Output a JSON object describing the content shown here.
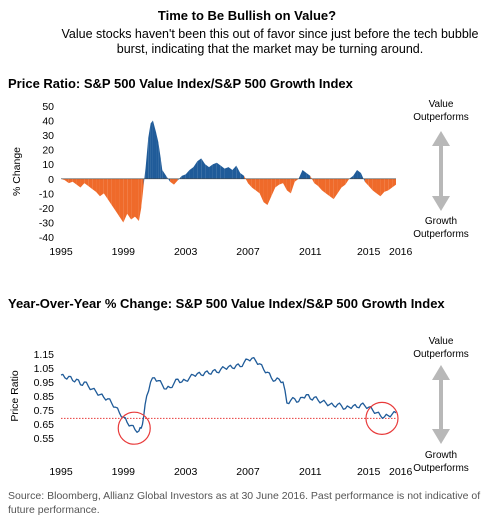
{
  "title": "Time to Be Bullish on Value?",
  "subtitle": "Value stocks haven't been this out of favor since just before the tech bubble burst, indicating that the market may be turning around.",
  "source": "Source: Bloomberg, Allianz Global Investors as at 30 June 2016. Past performance is not indicative of future performance.",
  "colors": {
    "positive": "#1f5b99",
    "negative": "#ef6a2a",
    "line": "#1f5b99",
    "reference": "#e83a3a",
    "arrow": "#b8b8b8"
  },
  "chart_data": [
    {
      "type": "area",
      "title": "Price Ratio: S&P 500 Value Index/S&P 500 Growth Index",
      "ylabel": "% Change",
      "ylim": [
        -40,
        50
      ],
      "yticks": [
        "50",
        "40",
        "30",
        "20",
        "10",
        "0",
        "-10",
        "-20",
        "-30",
        "-40"
      ],
      "xlim": [
        1995,
        2016.5
      ],
      "xticks": [
        "1995",
        "1999",
        "2003",
        "2007",
        "2011",
        "2015",
        "2016"
      ],
      "annotations": [
        "Value",
        "Outperforms",
        "Growth",
        "Outperforms"
      ],
      "series": [
        {
          "x": [
            1995.0,
            1995.25,
            1995.5,
            1995.75,
            1996.0,
            1996.25,
            1996.5,
            1996.75,
            1997.0,
            1997.25,
            1997.5,
            1997.75,
            1998.0,
            1998.25,
            1998.5,
            1998.75,
            1999.0,
            1999.25,
            1999.5,
            1999.75,
            2000.0,
            2000.15,
            2000.3,
            2000.45,
            2000.6,
            2000.75,
            2000.9,
            2001.0,
            2001.1,
            2001.25,
            2001.4,
            2001.5,
            2001.75,
            2002.0,
            2002.25,
            2002.5,
            2002.75,
            2003.0,
            2003.25,
            2003.5,
            2003.75,
            2004.0,
            2004.25,
            2004.5,
            2004.75,
            2005.0,
            2005.25,
            2005.5,
            2005.75,
            2006.0,
            2006.25,
            2006.5,
            2006.75,
            2007.0,
            2007.25,
            2007.5,
            2007.75,
            2008.0,
            2008.25,
            2008.5,
            2008.75,
            2009.0,
            2009.25,
            2009.5,
            2009.75,
            2010.0,
            2010.25,
            2010.5,
            2010.75,
            2011.0,
            2011.25,
            2011.5,
            2011.75,
            2012.0,
            2012.25,
            2012.5,
            2012.75,
            2013.0,
            2013.25,
            2013.5,
            2013.75,
            2014.0,
            2014.25,
            2014.5,
            2014.75,
            2015.0,
            2015.25,
            2015.5,
            2015.75,
            2016.0,
            2016.25,
            2016.5
          ],
          "y": [
            0,
            -1,
            -3,
            -2,
            -4,
            -6,
            -3,
            -5,
            -7,
            -9,
            -12,
            -10,
            -14,
            -18,
            -22,
            -26,
            -30,
            -24,
            -28,
            -26,
            -29,
            -20,
            -5,
            10,
            28,
            38,
            40,
            36,
            32,
            25,
            14,
            6,
            2,
            -2,
            -4,
            -1,
            2,
            3,
            6,
            8,
            12,
            14,
            10,
            8,
            10,
            11,
            9,
            7,
            8,
            6,
            9,
            4,
            2,
            -3,
            -6,
            -8,
            -10,
            -16,
            -18,
            -12,
            -6,
            -4,
            -3,
            -8,
            -10,
            -2,
            0,
            6,
            4,
            2,
            -3,
            -5,
            -8,
            -10,
            -12,
            -14,
            -10,
            -6,
            -4,
            0,
            2,
            6,
            4,
            -2,
            -5,
            -8,
            -10,
            -12,
            -9,
            -8,
            -6,
            -4
          ]
        }
      ]
    },
    {
      "type": "line",
      "title": "Year-Over-Year % Change: S&P 500 Value Index/S&P 500 Growth Index",
      "ylabel": "Price Ratio",
      "ylim": [
        0.55,
        1.15
      ],
      "yticks": [
        "1.15",
        "1.05",
        "0.95",
        "0.85",
        "0.75",
        "0.65",
        "0.55"
      ],
      "xlim": [
        1995,
        2016.5
      ],
      "xticks": [
        "1995",
        "1999",
        "2003",
        "2007",
        "2011",
        "2015",
        "2016"
      ],
      "reference_line": 0.69,
      "circles_at": [
        [
          1999.7,
          0.62
        ],
        [
          2015.6,
          0.69
        ]
      ],
      "annotations": [
        "Value",
        "Outperforms",
        "Growth",
        "Outperforms"
      ],
      "series": [
        {
          "x": [
            1995.0,
            1995.25,
            1995.5,
            1995.75,
            1996.0,
            1996.25,
            1996.5,
            1996.75,
            1997.0,
            1997.25,
            1997.5,
            1997.75,
            1998.0,
            1998.25,
            1998.5,
            1998.75,
            1999.0,
            1999.25,
            1999.5,
            1999.75,
            2000.0,
            2000.15,
            2000.3,
            2000.5,
            2000.75,
            2001.0,
            2001.25,
            2001.5,
            2001.75,
            2002.0,
            2002.25,
            2002.5,
            2002.75,
            2003.0,
            2003.25,
            2003.5,
            2003.75,
            2004.0,
            2004.25,
            2004.5,
            2004.75,
            2005.0,
            2005.25,
            2005.5,
            2005.75,
            2006.0,
            2006.25,
            2006.5,
            2006.75,
            2007.0,
            2007.25,
            2007.5,
            2007.75,
            2008.0,
            2008.25,
            2008.5,
            2008.75,
            2009.0,
            2009.25,
            2009.5,
            2009.75,
            2010.0,
            2010.25,
            2010.5,
            2010.75,
            2011.0,
            2011.25,
            2011.5,
            2011.75,
            2012.0,
            2012.25,
            2012.5,
            2012.75,
            2013.0,
            2013.25,
            2013.5,
            2013.75,
            2014.0,
            2014.25,
            2014.5,
            2014.75,
            2015.0,
            2015.25,
            2015.5,
            2015.75,
            2016.0,
            2016.25,
            2016.5
          ],
          "y": [
            1.0,
            0.98,
            0.99,
            0.96,
            0.97,
            0.93,
            0.95,
            0.92,
            0.9,
            0.88,
            0.86,
            0.84,
            0.83,
            0.8,
            0.77,
            0.73,
            0.7,
            0.66,
            0.64,
            0.61,
            0.6,
            0.62,
            0.7,
            0.85,
            0.95,
            0.98,
            0.96,
            0.93,
            0.9,
            0.91,
            0.94,
            0.97,
            0.95,
            0.96,
            0.98,
            1.0,
            1.01,
            1.0,
            1.02,
            1.01,
            1.03,
            1.02,
            1.04,
            1.05,
            1.06,
            1.05,
            1.07,
            1.06,
            1.09,
            1.11,
            1.12,
            1.1,
            1.08,
            1.04,
            1.02,
            0.98,
            0.96,
            0.97,
            0.95,
            0.8,
            0.82,
            0.83,
            0.81,
            0.84,
            0.86,
            0.83,
            0.84,
            0.82,
            0.81,
            0.8,
            0.79,
            0.78,
            0.79,
            0.78,
            0.76,
            0.77,
            0.78,
            0.77,
            0.79,
            0.78,
            0.77,
            0.75,
            0.73,
            0.71,
            0.7,
            0.71,
            0.72,
            0.73
          ]
        }
      ]
    }
  ]
}
